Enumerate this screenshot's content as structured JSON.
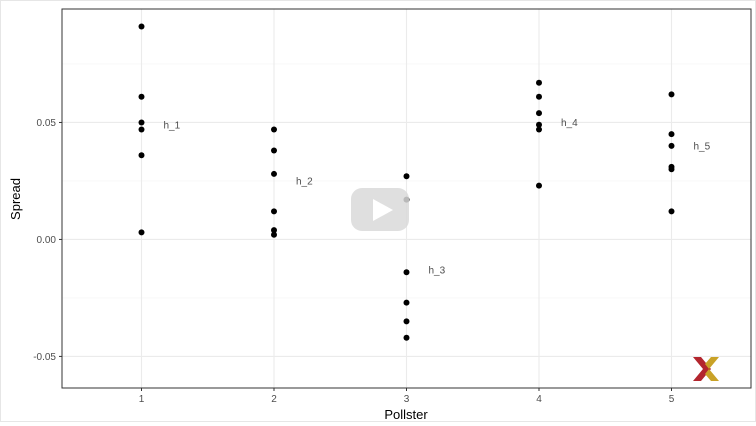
{
  "chart_data": {
    "type": "scatter",
    "title": "",
    "xlabel": "Pollster",
    "ylabel": "Spread",
    "xlim": [
      0.4,
      5.6
    ],
    "ylim": [
      -0.0635,
      0.0985
    ],
    "x_ticks": [
      1,
      2,
      3,
      4,
      5
    ],
    "x_tick_labels": [
      "1",
      "2",
      "3",
      "4",
      "5"
    ],
    "y_ticks": [
      -0.05,
      0.0,
      0.05
    ],
    "y_tick_labels": [
      "-0.05",
      "0.00",
      "0.05"
    ],
    "grid": true,
    "legend": "none",
    "points": [
      {
        "x": 1,
        "y": 0.091
      },
      {
        "x": 1,
        "y": 0.061
      },
      {
        "x": 1,
        "y": 0.05
      },
      {
        "x": 1,
        "y": 0.047
      },
      {
        "x": 1,
        "y": 0.036
      },
      {
        "x": 1,
        "y": 0.003
      },
      {
        "x": 2,
        "y": 0.047
      },
      {
        "x": 2,
        "y": 0.038
      },
      {
        "x": 2,
        "y": 0.028
      },
      {
        "x": 2,
        "y": 0.012
      },
      {
        "x": 2,
        "y": 0.004
      },
      {
        "x": 2,
        "y": 0.002
      },
      {
        "x": 3,
        "y": 0.027
      },
      {
        "x": 3,
        "y": 0.017
      },
      {
        "x": 3,
        "y": -0.014
      },
      {
        "x": 3,
        "y": -0.027
      },
      {
        "x": 3,
        "y": -0.035
      },
      {
        "x": 3,
        "y": -0.042
      },
      {
        "x": 4,
        "y": 0.067
      },
      {
        "x": 4,
        "y": 0.061
      },
      {
        "x": 4,
        "y": 0.054
      },
      {
        "x": 4,
        "y": 0.049
      },
      {
        "x": 4,
        "y": 0.047
      },
      {
        "x": 4,
        "y": 0.023
      },
      {
        "x": 5,
        "y": 0.062
      },
      {
        "x": 5,
        "y": 0.045
      },
      {
        "x": 5,
        "y": 0.04
      },
      {
        "x": 5,
        "y": 0.031
      },
      {
        "x": 5,
        "y": 0.03
      },
      {
        "x": 5,
        "y": 0.012
      }
    ],
    "annotations": [
      {
        "text": "h_1",
        "x": 1,
        "y": 0.049
      },
      {
        "text": "h_2",
        "x": 2,
        "y": 0.025
      },
      {
        "text": "h_3",
        "x": 3,
        "y": -0.013
      },
      {
        "text": "h_4",
        "x": 4,
        "y": 0.05
      },
      {
        "text": "h_5",
        "x": 5,
        "y": 0.04
      }
    ]
  },
  "colors": {
    "point": "#000000",
    "grid_major": "#ebebeb",
    "grid_minor": "#f4f4f4",
    "panel_border": "#333333",
    "play_button_bg": "#d9d9d9",
    "logo_red": "#b3262e",
    "logo_gold": "#c9a227"
  },
  "overlay": {
    "play_button_icon": "play-icon",
    "logo_icon": "x-logo-icon"
  }
}
